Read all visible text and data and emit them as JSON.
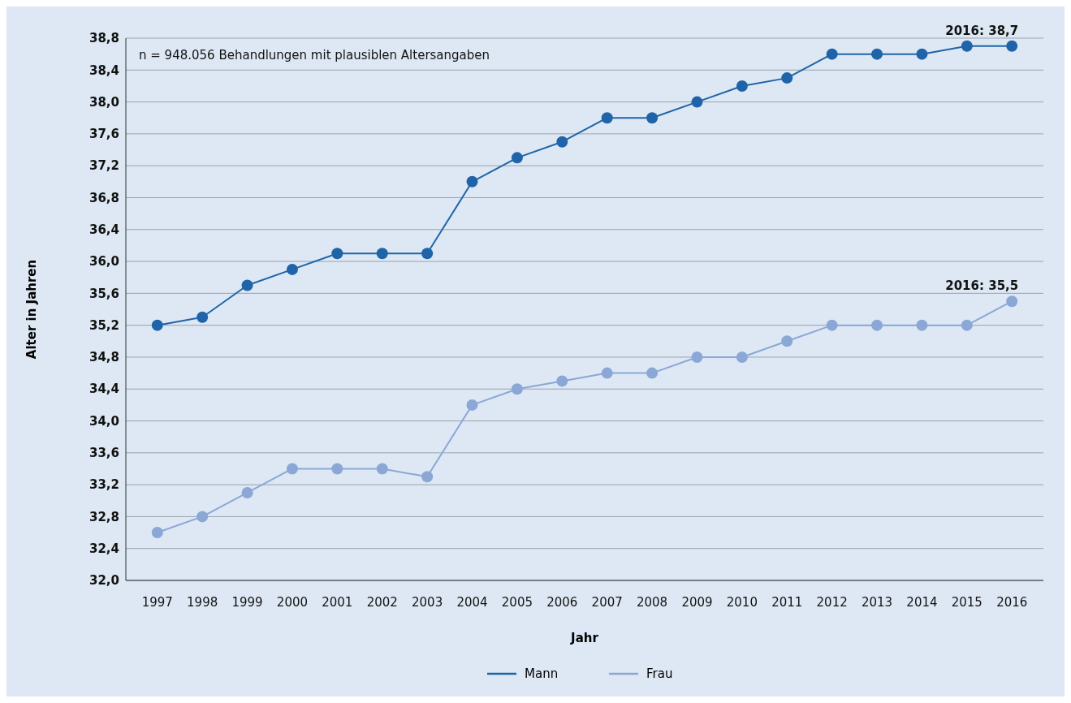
{
  "chart_data": {
    "type": "line",
    "xlabel": "Jahr",
    "ylabel": "Alter in Jahren",
    "categories": [
      "1997",
      "1998",
      "1999",
      "2000",
      "2001",
      "2002",
      "2003",
      "2004",
      "2005",
      "2006",
      "2007",
      "2008",
      "2009",
      "2010",
      "2011",
      "2012",
      "2013",
      "2014",
      "2015",
      "2016"
    ],
    "series": [
      {
        "name": "Mann",
        "color": "#1f64a8",
        "values": [
          35.2,
          35.3,
          35.7,
          35.9,
          36.1,
          36.1,
          36.1,
          37.0,
          37.3,
          37.5,
          37.8,
          37.8,
          38.0,
          38.2,
          38.3,
          38.6,
          38.6,
          38.6,
          38.7,
          38.7
        ]
      },
      {
        "name": "Frau",
        "color": "#8ba7d6",
        "values": [
          32.6,
          32.8,
          33.1,
          33.4,
          33.4,
          33.4,
          33.3,
          34.2,
          34.4,
          34.5,
          34.6,
          34.6,
          34.8,
          34.8,
          35.0,
          35.2,
          35.2,
          35.2,
          35.2,
          35.5
        ]
      }
    ],
    "ylim": [
      32.0,
      38.8
    ],
    "yticks": [
      {
        "value": 32.0,
        "label": "32,0"
      },
      {
        "value": 32.4,
        "label": "32,4"
      },
      {
        "value": 32.8,
        "label": "32,8"
      },
      {
        "value": 33.2,
        "label": "33,2"
      },
      {
        "value": 33.6,
        "label": "33,6"
      },
      {
        "value": 34.0,
        "label": "34,0"
      },
      {
        "value": 34.4,
        "label": "34,4"
      },
      {
        "value": 34.8,
        "label": "34,8"
      },
      {
        "value": 35.2,
        "label": "35,2"
      },
      {
        "value": 35.6,
        "label": "35,6"
      },
      {
        "value": 36.0,
        "label": "36,0"
      },
      {
        "value": 36.4,
        "label": "36,4"
      },
      {
        "value": 36.8,
        "label": "36,8"
      },
      {
        "value": 37.2,
        "label": "37,2"
      },
      {
        "value": 37.6,
        "label": "37,6"
      },
      {
        "value": 38.0,
        "label": "38,0"
      },
      {
        "value": 38.4,
        "label": "38,4"
      },
      {
        "value": 38.8,
        "label": "38,8"
      }
    ],
    "annotations": [
      "n = 948.056 Behandlungen mit plausiblen Altersangaben",
      {
        "text": "2016: 38,7",
        "x": "2016",
        "y": 38.7
      },
      {
        "text": "2016: 35,5",
        "x": "2016",
        "y": 35.5
      }
    ],
    "grid": "y",
    "legend": "bottom",
    "marker": "circle",
    "line_style": "solid"
  }
}
